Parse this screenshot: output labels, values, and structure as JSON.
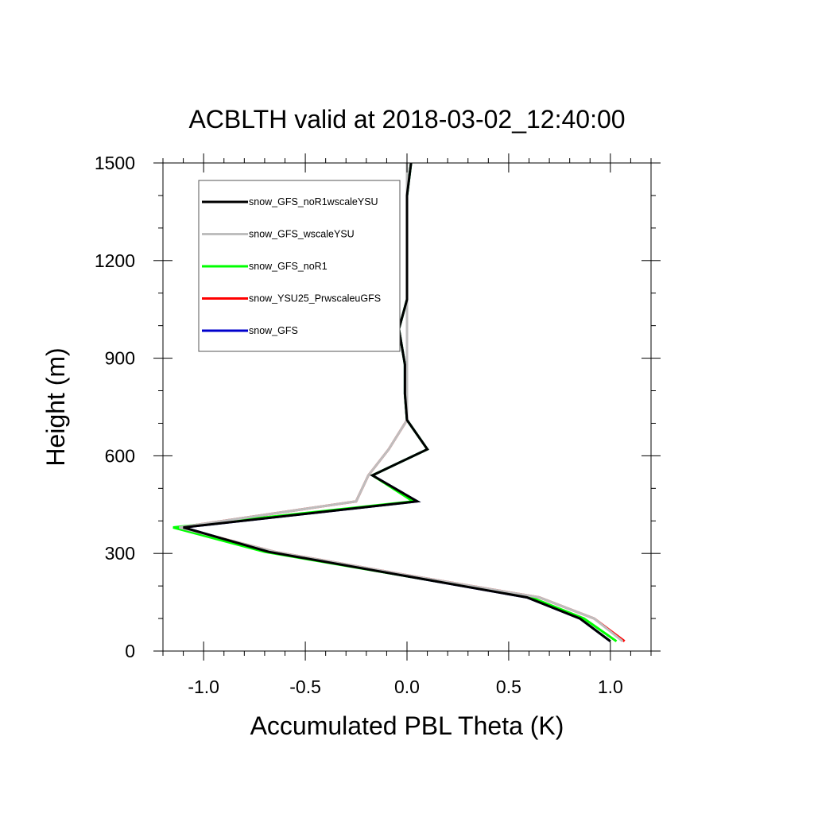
{
  "chart_data": {
    "type": "line",
    "title": "ACBLTH valid at 2018-03-02_12:40:00",
    "xlabel": "Accumulated PBL Theta (K)",
    "ylabel": "Height (m)",
    "xlim": [
      -1.2,
      1.2
    ],
    "ylim": [
      0,
      1500
    ],
    "xticks": [
      -1.0,
      -0.5,
      0.0,
      0.5,
      1.0
    ],
    "xtick_labels": [
      "-1.0",
      "-0.5",
      "0.0",
      "0.5",
      "1.0"
    ],
    "yticks": [
      0,
      300,
      600,
      900,
      1200,
      1500
    ],
    "ytick_labels": [
      "0",
      "300",
      "600",
      "900",
      "1200",
      "1500"
    ],
    "legend_position": "top-left",
    "grid": false,
    "series": [
      {
        "name": "snow_GFS_noR1wscaleYSU",
        "color": "#000000",
        "points": [
          [
            1.0,
            30
          ],
          [
            0.85,
            100
          ],
          [
            0.59,
            165
          ],
          [
            0.0,
            230
          ],
          [
            -0.68,
            305
          ],
          [
            -1.1,
            380
          ],
          [
            0.05,
            460
          ],
          [
            -0.17,
            540
          ],
          [
            0.1,
            620
          ],
          [
            0.0,
            710
          ],
          [
            -0.01,
            790
          ],
          [
            -0.01,
            880
          ],
          [
            -0.04,
            990
          ],
          [
            0.0,
            1080
          ],
          [
            0.0,
            1200
          ],
          [
            0.0,
            1300
          ],
          [
            0.0,
            1400
          ],
          [
            0.02,
            1500
          ]
        ]
      },
      {
        "name": "snow_GFS_wscaleYSU",
        "color": "#bebebe",
        "points": [
          [
            1.06,
            30
          ],
          [
            0.92,
            100
          ],
          [
            0.65,
            165
          ],
          [
            0.03,
            230
          ],
          [
            -0.65,
            305
          ],
          [
            -1.12,
            380
          ],
          [
            -0.25,
            460
          ],
          [
            -0.19,
            540
          ],
          [
            -0.09,
            620
          ],
          [
            0.0,
            710
          ],
          [
            0.0,
            790
          ],
          [
            0.0,
            880
          ],
          [
            0.0,
            990
          ],
          [
            0.0,
            1080
          ],
          [
            0.0,
            1200
          ],
          [
            0.0,
            1300
          ],
          [
            0.0,
            1400
          ],
          [
            0.0,
            1500
          ]
        ]
      },
      {
        "name": "snow_GFS_noR1",
        "color": "#00ff00",
        "points": [
          [
            1.03,
            30
          ],
          [
            0.87,
            100
          ],
          [
            0.61,
            165
          ],
          [
            0.0,
            230
          ],
          [
            -0.7,
            305
          ],
          [
            -1.15,
            380
          ],
          [
            0.03,
            460
          ],
          [
            -0.17,
            540
          ],
          [
            0.1,
            620
          ],
          [
            0.0,
            710
          ],
          [
            -0.01,
            790
          ],
          [
            -0.01,
            880
          ],
          [
            -0.04,
            990
          ],
          [
            0.0,
            1080
          ],
          [
            0.0,
            1200
          ],
          [
            0.0,
            1300
          ],
          [
            0.0,
            1400
          ],
          [
            0.02,
            1500
          ]
        ]
      },
      {
        "name": "snow_YSU25_PrwscaleuGFS",
        "color": "#ff0000",
        "points": [
          [
            1.07,
            30
          ],
          [
            0.92,
            100
          ],
          [
            0.65,
            165
          ],
          [
            0.03,
            230
          ],
          [
            -0.65,
            305
          ],
          [
            -1.12,
            380
          ],
          [
            -0.25,
            460
          ],
          [
            -0.19,
            540
          ],
          [
            -0.09,
            620
          ],
          [
            0.0,
            710
          ],
          [
            0.0,
            790
          ],
          [
            0.0,
            880
          ],
          [
            0.0,
            990
          ],
          [
            0.0,
            1080
          ],
          [
            0.0,
            1200
          ],
          [
            0.0,
            1300
          ],
          [
            0.0,
            1400
          ],
          [
            0.0,
            1500
          ]
        ]
      },
      {
        "name": "snow_GFS",
        "color": "#0000cc",
        "points": [
          [
            1.0,
            30
          ],
          [
            0.85,
            100
          ],
          [
            0.59,
            165
          ],
          [
            0.0,
            230
          ],
          [
            -0.68,
            305
          ],
          [
            -1.1,
            380
          ],
          [
            0.05,
            460
          ],
          [
            -0.17,
            540
          ],
          [
            0.1,
            620
          ],
          [
            0.0,
            710
          ],
          [
            -0.01,
            790
          ],
          [
            -0.01,
            880
          ],
          [
            -0.04,
            990
          ],
          [
            0.0,
            1080
          ],
          [
            0.0,
            1200
          ],
          [
            0.0,
            1300
          ],
          [
            0.0,
            1400
          ],
          [
            0.02,
            1500
          ]
        ]
      }
    ]
  }
}
